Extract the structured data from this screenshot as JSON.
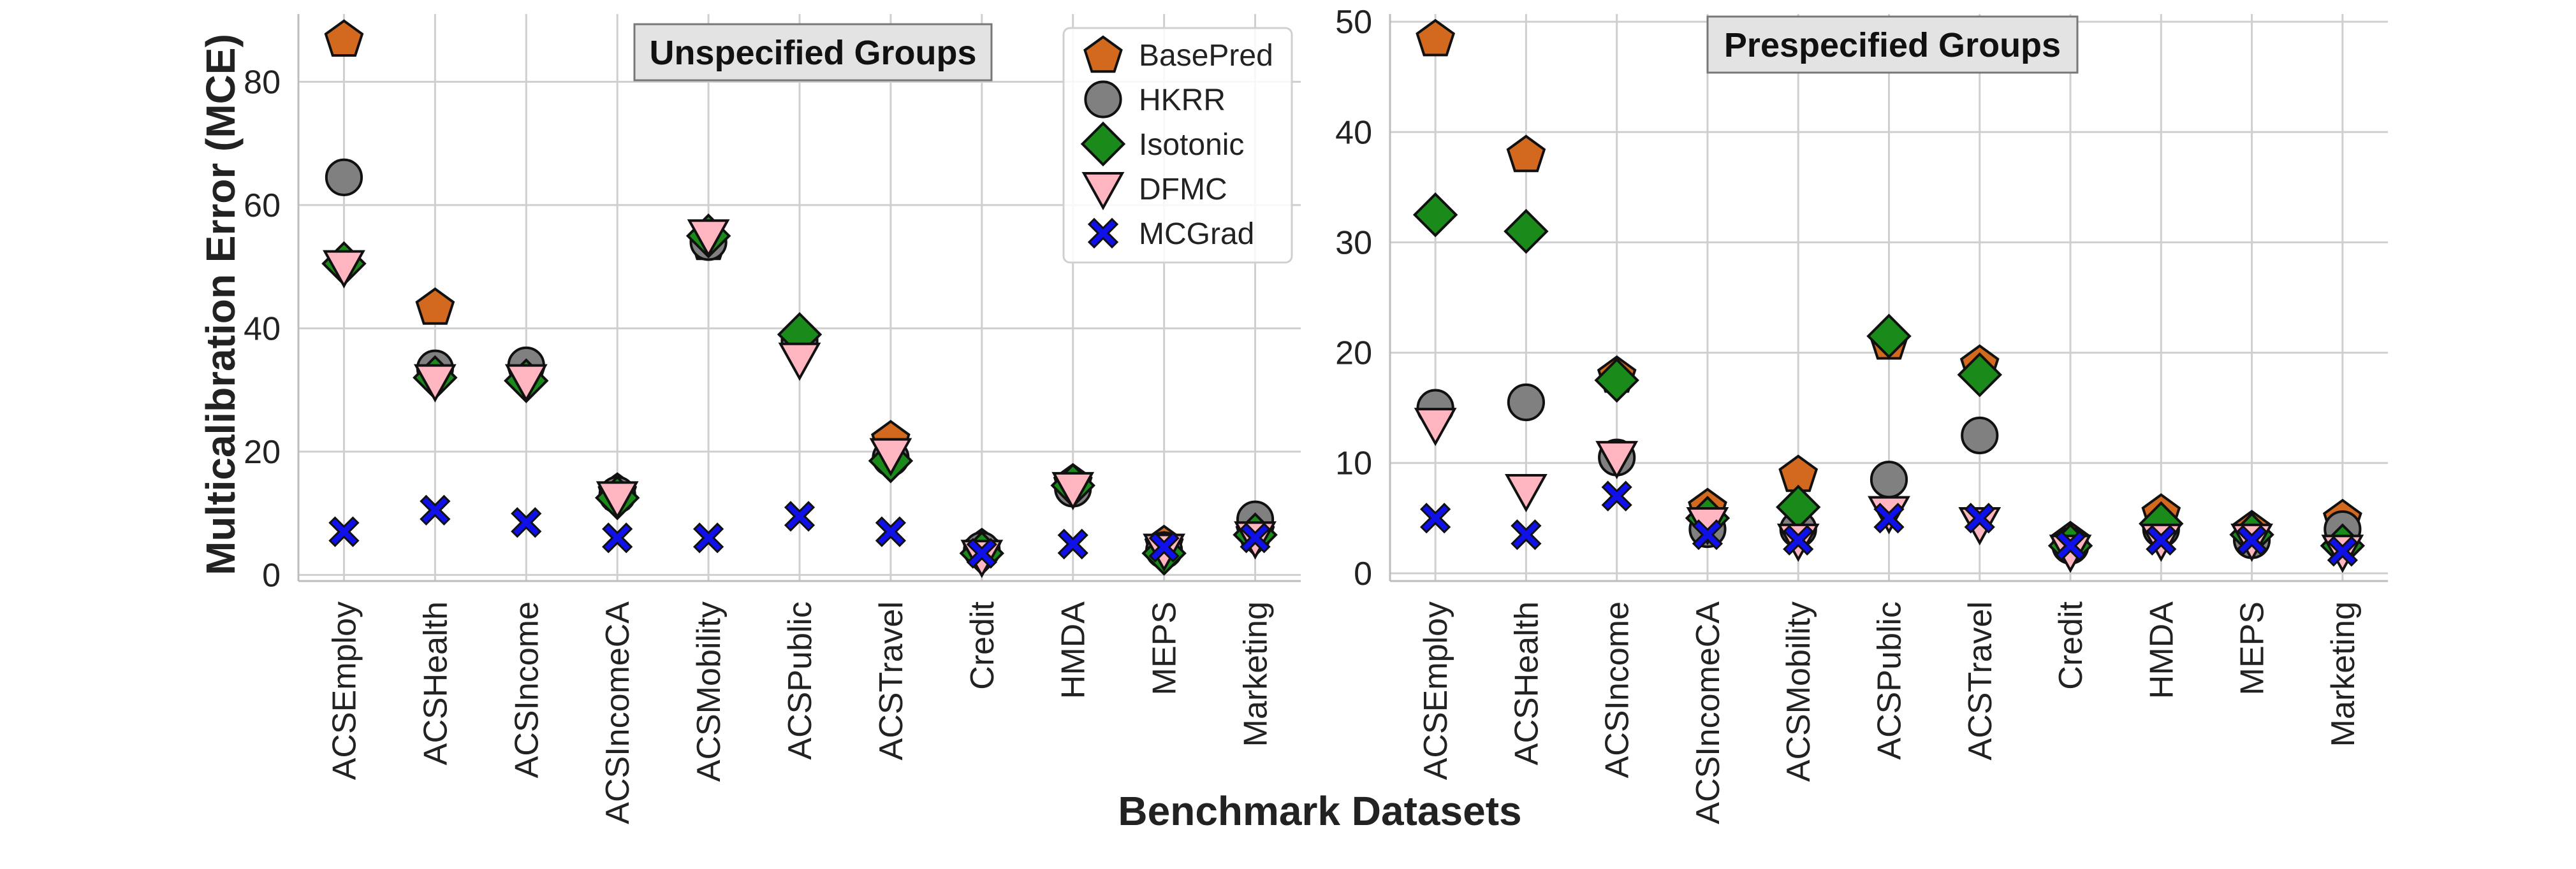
{
  "chart_data": {
    "type": "scatter",
    "xlabel": "Benchmark Datasets",
    "ylabel": "Multicalibration Error (MCE)",
    "categories": [
      "ACSEmploy",
      "ACSHealth",
      "ACSIncome",
      "ACSIncomeCA",
      "ACSMobility",
      "ACSPublic",
      "ACSTravel",
      "Credit",
      "HMDA",
      "MEPS",
      "Marketing"
    ],
    "legend": {
      "placement": "upper-right of first panel",
      "entries": [
        {
          "name": "BasePred",
          "marker": "pentagon",
          "color": "#d2691e"
        },
        {
          "name": "HKRR",
          "marker": "circle",
          "color": "#808080"
        },
        {
          "name": "Isotonic",
          "marker": "diamond",
          "color": "#1a8a1a"
        },
        {
          "name": "DFMC",
          "marker": "triangle-down",
          "color": "#ffb6c1"
        },
        {
          "name": "MCGrad",
          "marker": "x",
          "color": "#1010e8"
        }
      ]
    },
    "panels": [
      {
        "title": "Unspecified Groups",
        "ylim": [
          -1,
          91
        ],
        "yticks": [
          0,
          20,
          40,
          60,
          80
        ],
        "series": [
          {
            "name": "BasePred",
            "values": [
              87,
              43.5,
              33,
              13.5,
              54,
              38,
              22,
              4.5,
              15,
              5,
              7
            ]
          },
          {
            "name": "HKRR",
            "values": [
              64.5,
              33.5,
              34,
              13,
              54,
              38,
              19,
              4,
              14,
              4,
              9
            ]
          },
          {
            "name": "Isotonic",
            "values": [
              50.5,
              32,
              31.5,
              12.5,
              55,
              39,
              18.5,
              3.5,
              14.5,
              3.5,
              6.5
            ]
          },
          {
            "name": "DFMC",
            "values": [
              50,
              31.5,
              31.5,
              12.5,
              55,
              35,
              19.5,
              3,
              14,
              4,
              6
            ]
          },
          {
            "name": "MCGrad",
            "values": [
              7,
              10.5,
              8.5,
              6,
              6,
              9.5,
              7,
              3.5,
              5,
              4.5,
              6
            ]
          }
        ]
      },
      {
        "title": "Prespecified Groups",
        "ylim": [
          -0.7,
          50.7
        ],
        "yticks": [
          0,
          10,
          20,
          30,
          40,
          50
        ],
        "series": [
          {
            "name": "BasePred",
            "values": [
              48.5,
              38,
              18,
              6,
              9,
              21,
              19,
              3,
              5.5,
              4,
              5
            ]
          },
          {
            "name": "HKRR",
            "values": [
              15,
              15.5,
              10.5,
              4,
              4,
              8.5,
              12.5,
              2.5,
              4,
              3,
              4
            ]
          },
          {
            "name": "Isotonic",
            "values": [
              32.5,
              31,
              17.5,
              5,
              6,
              21.5,
              18,
              2.5,
              4.5,
              3.5,
              2.5
            ]
          },
          {
            "name": "DFMC",
            "values": [
              13.5,
              7.5,
              10.5,
              4.5,
              3,
              5.5,
              4.5,
              2,
              3,
              3,
              2
            ]
          },
          {
            "name": "MCGrad",
            "values": [
              5,
              3.5,
              7,
              3.5,
              3,
              5,
              5,
              2.5,
              3,
              3,
              2
            ]
          }
        ]
      }
    ]
  }
}
